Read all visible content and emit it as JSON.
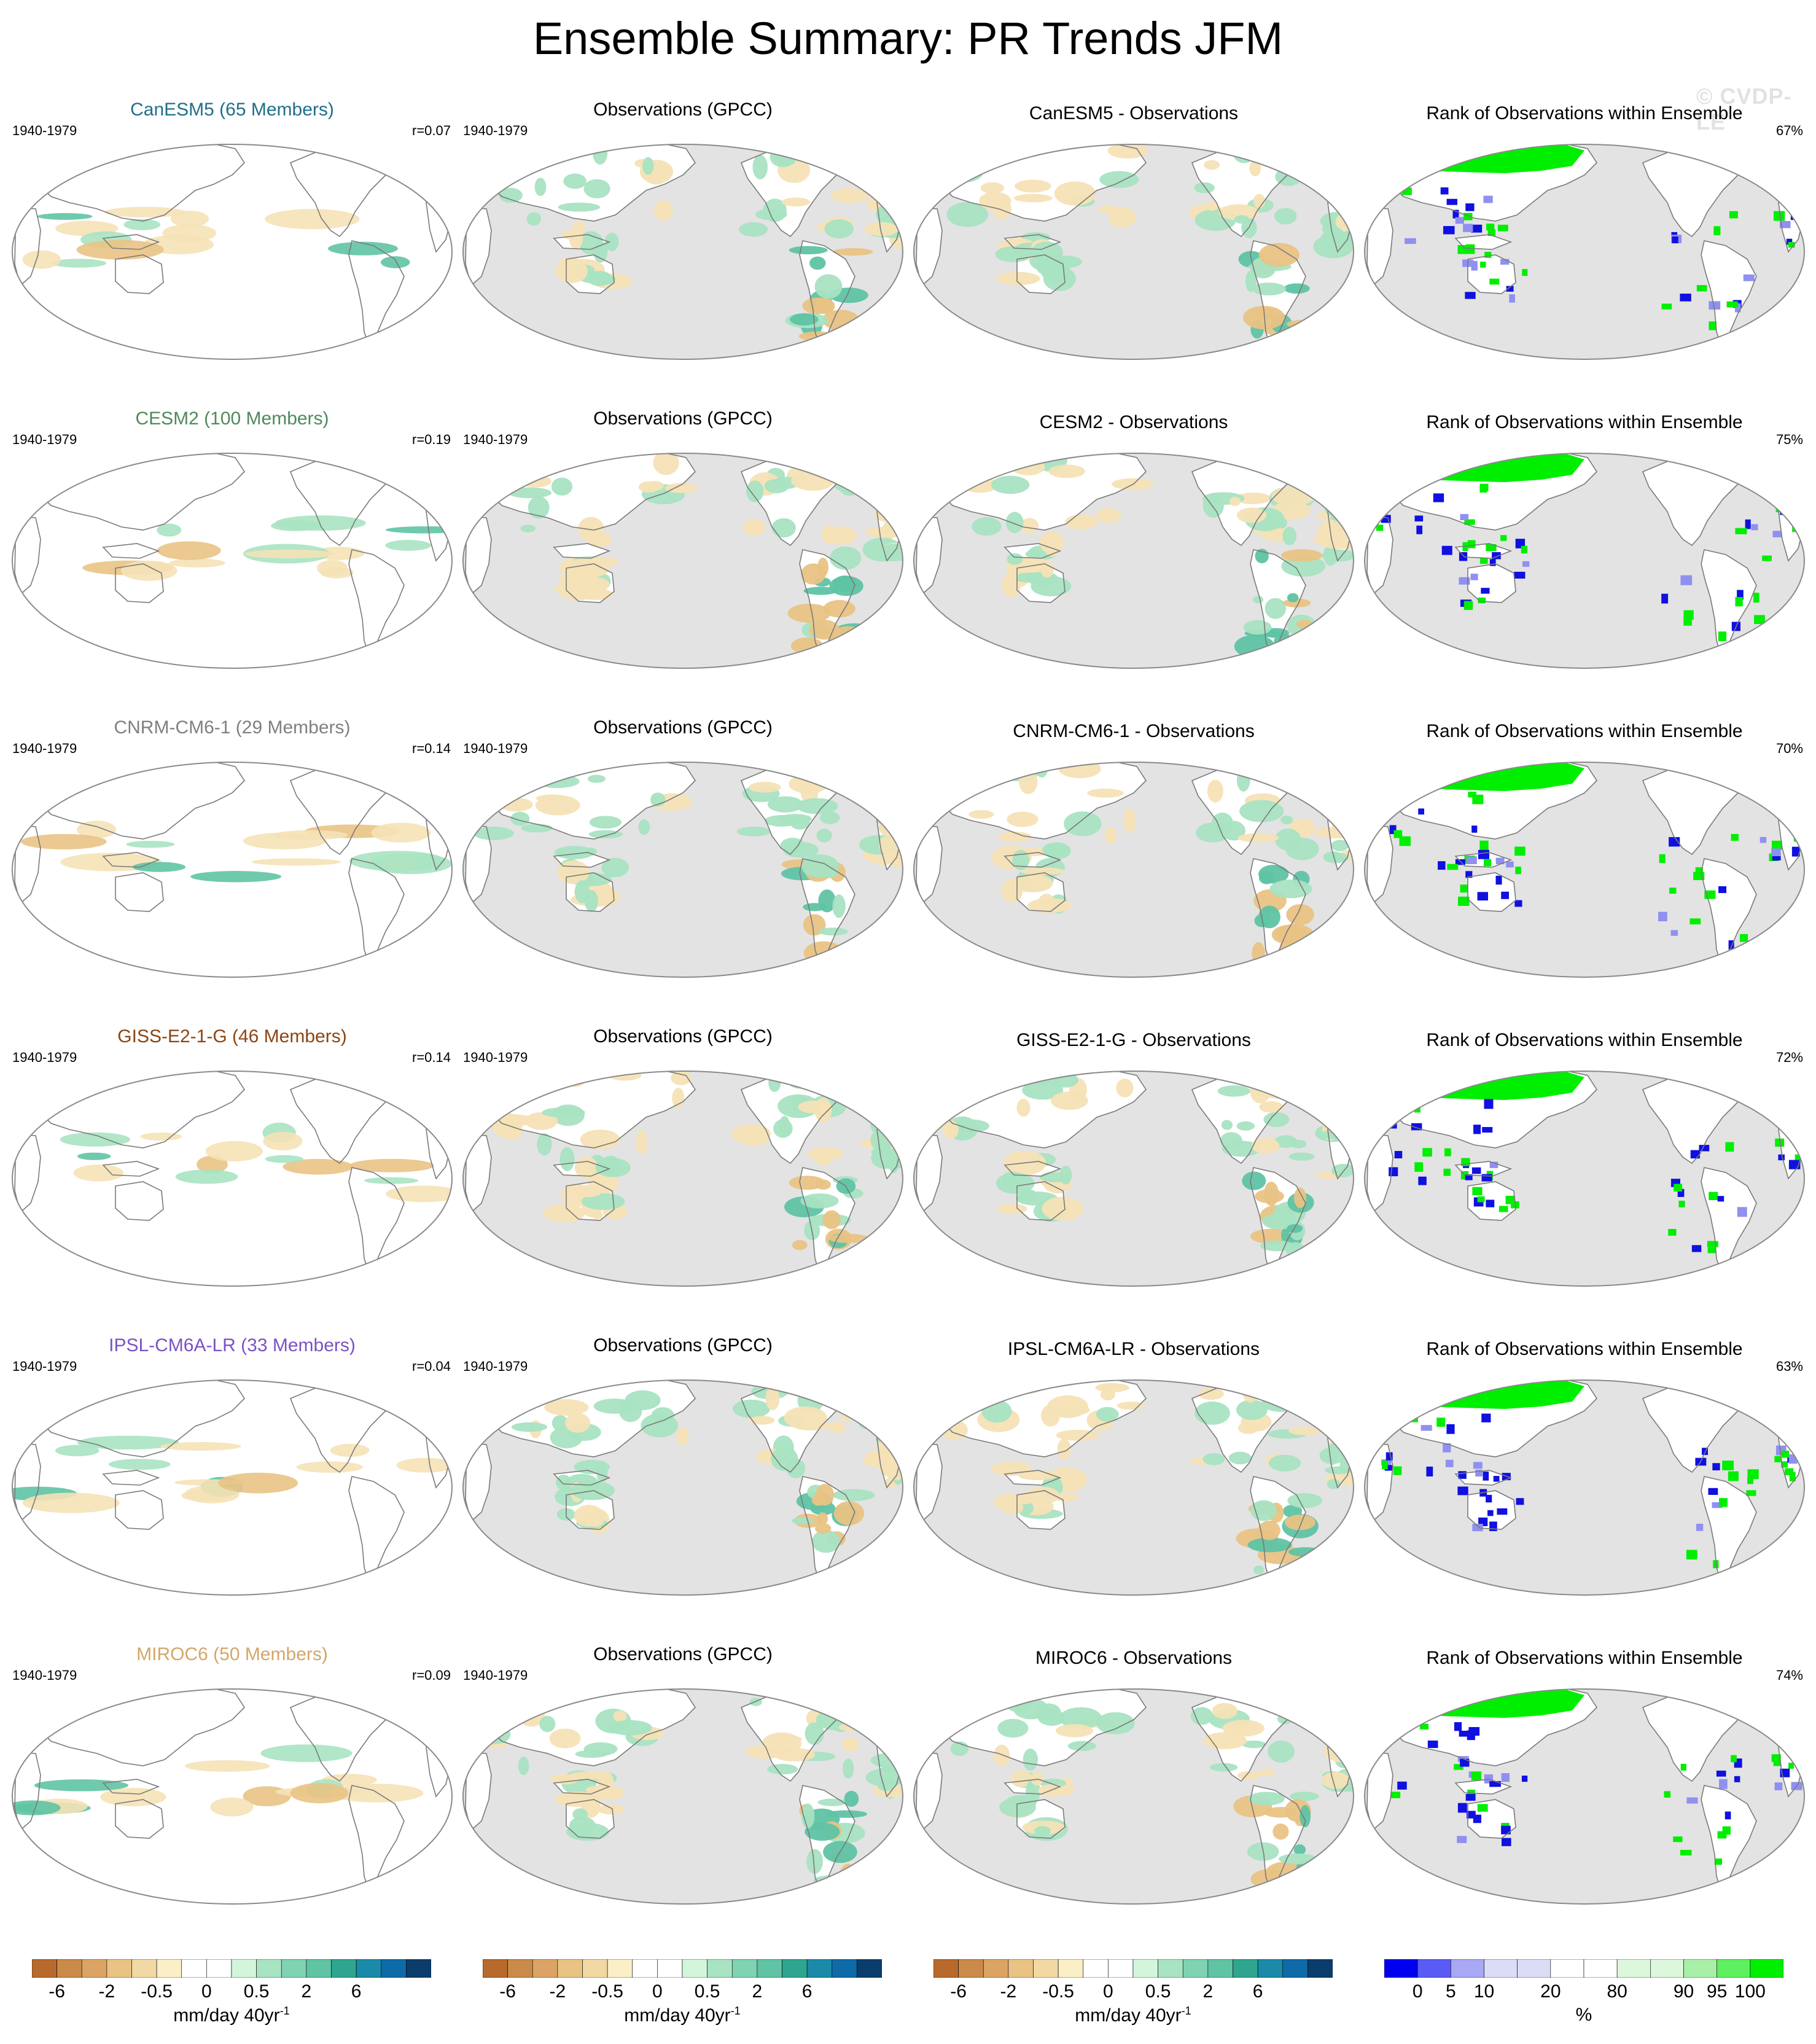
{
  "title": "Ensemble Summary: PR Trends JFM",
  "watermark": "© CVDP-LE",
  "rows": [
    {
      "model_title": "CanESM5 (65 Members)",
      "model_title_color": "#1f6f8b",
      "period": "1940-1979",
      "r": "r=0.07",
      "obs_title": "Observations (GPCC)",
      "obs_period": "1940-1979",
      "diff_title": "CanESM5 - Observations",
      "rank_title": "Rank of Observations within Ensemble",
      "rank_pct": "67%"
    },
    {
      "model_title": "CESM2 (100 Members)",
      "model_title_color": "#4f8a5b",
      "period": "1940-1979",
      "r": "r=0.19",
      "obs_title": "Observations (GPCC)",
      "obs_period": "1940-1979",
      "diff_title": "CESM2 - Observations",
      "rank_title": "Rank of Observations within Ensemble",
      "rank_pct": "75%"
    },
    {
      "model_title": "CNRM-CM6-1 (29 Members)",
      "model_title_color": "#808080",
      "period": "1940-1979",
      "r": "r=0.14",
      "obs_title": "Observations (GPCC)",
      "obs_period": "1940-1979",
      "diff_title": "CNRM-CM6-1 - Observations",
      "rank_title": "Rank of Observations within Ensemble",
      "rank_pct": "70%"
    },
    {
      "model_title": "GISS-E2-1-G (46 Members)",
      "model_title_color": "#8b4513",
      "period": "1940-1979",
      "r": "r=0.14",
      "obs_title": "Observations (GPCC)",
      "obs_period": "1940-1979",
      "diff_title": "GISS-E2-1-G - Observations",
      "rank_title": "Rank of Observations within Ensemble",
      "rank_pct": "72%"
    },
    {
      "model_title": "IPSL-CM6A-LR (33 Members)",
      "model_title_color": "#7b52c4",
      "period": "1940-1979",
      "r": "r=0.04",
      "obs_title": "Observations (GPCC)",
      "obs_period": "1940-1979",
      "diff_title": "IPSL-CM6A-LR - Observations",
      "rank_title": "Rank of Observations within Ensemble",
      "rank_pct": "63%"
    },
    {
      "model_title": "MIROC6 (50 Members)",
      "model_title_color": "#d4a66a",
      "period": "1940-1979",
      "r": "r=0.09",
      "obs_title": "Observations (GPCC)",
      "obs_period": "1940-1979",
      "diff_title": "MIROC6 - Observations",
      "rank_title": "Rank of Observations within Ensemble",
      "rank_pct": "74%"
    }
  ],
  "colors": {
    "land_mask": "#e3e3e3",
    "ocean_white": "#ffffff",
    "outline": "#7a7a7a",
    "dry": "#e9c384",
    "dry_light": "#f5e2b6",
    "dry_strong": "#c98a4a",
    "wet": "#a8e3c2",
    "wet_mid": "#5fc3a4",
    "wet_strong": "#2a8f8f",
    "rank_high": "#00ee00",
    "rank_low": "#1010e0",
    "rank_low_light": "#9090f0"
  },
  "colorbars": {
    "trend": {
      "colors": [
        "#b86a2c",
        "#c98a4a",
        "#dba465",
        "#e9c384",
        "#f2d9a3",
        "#fbefc7",
        "#ffffff",
        "#ffffff",
        "#d3f5dc",
        "#a8e3c2",
        "#7fd2b2",
        "#5fc3a4",
        "#2fa590",
        "#1b8aa8",
        "#0f6aa8",
        "#0a3d6b"
      ],
      "labels": [
        "-6",
        "-2",
        "-0.5",
        "0",
        "0.5",
        "2",
        "6"
      ],
      "units": "mm/day 40yr",
      "units_sup": "-1"
    },
    "rank": {
      "colors": [
        "#0000f0",
        "#5a5af5",
        "#a8a8f5",
        "#dcdcf7",
        "#dcdcf7",
        "#ffffff",
        "#ffffff",
        "#ddf7dd",
        "#ddf7dd",
        "#a8f0a8",
        "#5ef05e",
        "#00ee00"
      ],
      "labels": [
        "0",
        "5",
        "10",
        "20",
        "80",
        "90",
        "95",
        "100"
      ],
      "units": "%"
    }
  }
}
